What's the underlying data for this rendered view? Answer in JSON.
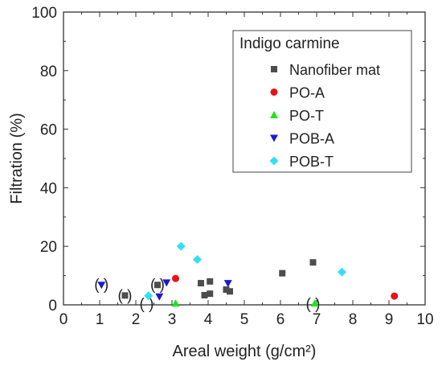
{
  "chart_data": {
    "type": "scatter",
    "xlabel": "Areal weight (g/cm²)",
    "ylabel": "Filtration (%)",
    "xlim": [
      0,
      10
    ],
    "ylim": [
      0,
      100
    ],
    "x_ticks": [
      "0",
      "1",
      "2",
      "3",
      "4",
      "5",
      "6",
      "7",
      "8",
      "9",
      "10"
    ],
    "y_ticks": [
      "0",
      "20",
      "40",
      "60",
      "80",
      "100"
    ],
    "grid": false,
    "legend": {
      "title": "Indigo carmine",
      "placement": "top-right"
    },
    "series": [
      {
        "name": "Nanofiber mat",
        "marker": "square",
        "color": "#4d4d4d",
        "points": [
          {
            "x": 1.7,
            "y": 3.2
          },
          {
            "x": 2.6,
            "y": 6.8
          },
          {
            "x": 3.8,
            "y": 7.4
          },
          {
            "x": 3.9,
            "y": 3.3
          },
          {
            "x": 4.05,
            "y": 8.0
          },
          {
            "x": 4.05,
            "y": 3.8
          },
          {
            "x": 4.5,
            "y": 5.2
          },
          {
            "x": 4.6,
            "y": 4.6
          },
          {
            "x": 6.05,
            "y": 10.8
          },
          {
            "x": 6.9,
            "y": 14.5
          }
        ]
      },
      {
        "name": "PO-A",
        "marker": "circle",
        "color": "#e8131a",
        "points": [
          {
            "x": 3.1,
            "y": 9.0
          },
          {
            "x": 9.15,
            "y": 3.0
          }
        ]
      },
      {
        "name": "PO-T",
        "marker": "triangle-up",
        "color": "#19e619",
        "points": [
          {
            "x": 3.1,
            "y": 0.5
          },
          {
            "x": 6.95,
            "y": 0.5
          }
        ]
      },
      {
        "name": "POB-A",
        "marker": "triangle-down",
        "color": "#1a1ad6",
        "points": [
          {
            "x": 1.05,
            "y": 6.8
          },
          {
            "x": 2.65,
            "y": 2.8
          },
          {
            "x": 2.85,
            "y": 7.6
          },
          {
            "x": 4.55,
            "y": 7.4
          }
        ]
      },
      {
        "name": "POB-T",
        "marker": "diamond",
        "color": "#33e0f2",
        "points": [
          {
            "x": 2.35,
            "y": 3.1
          },
          {
            "x": 3.25,
            "y": 20.0
          },
          {
            "x": 3.7,
            "y": 15.5
          },
          {
            "x": 7.7,
            "y": 11.2
          }
        ]
      }
    ],
    "annotations": [
      {
        "text": "( )",
        "x": 1.05,
        "y": 6.8
      },
      {
        "text": "( )",
        "x": 1.7,
        "y": 3.2
      },
      {
        "text": "( )",
        "x": 2.3,
        "y": 0.3
      },
      {
        "text": "( )",
        "x": 2.6,
        "y": 6.8
      },
      {
        "text": "( )",
        "x": 6.9,
        "y": 0.3
      }
    ]
  }
}
